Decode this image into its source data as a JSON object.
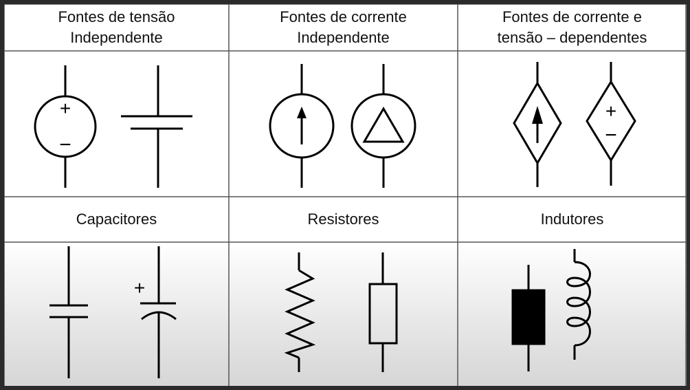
{
  "headers": {
    "voltage_sources": {
      "line1": "Fontes de tensão",
      "line2": "Independente"
    },
    "current_sources": {
      "line1": "Fontes de corrente",
      "line2": "Independente"
    },
    "dependent_sources": {
      "line1": "Fontes de corrente e",
      "line2": "tensão – dependentes"
    },
    "capacitors": "Capacitores",
    "resistors": "Resistores",
    "inductors": "Indutores"
  },
  "symbol_labels": {
    "plus": "+",
    "minus": "−"
  },
  "colors": {
    "stroke": "#000000",
    "background": "#ffffff",
    "frame": "#2b2b2b"
  }
}
